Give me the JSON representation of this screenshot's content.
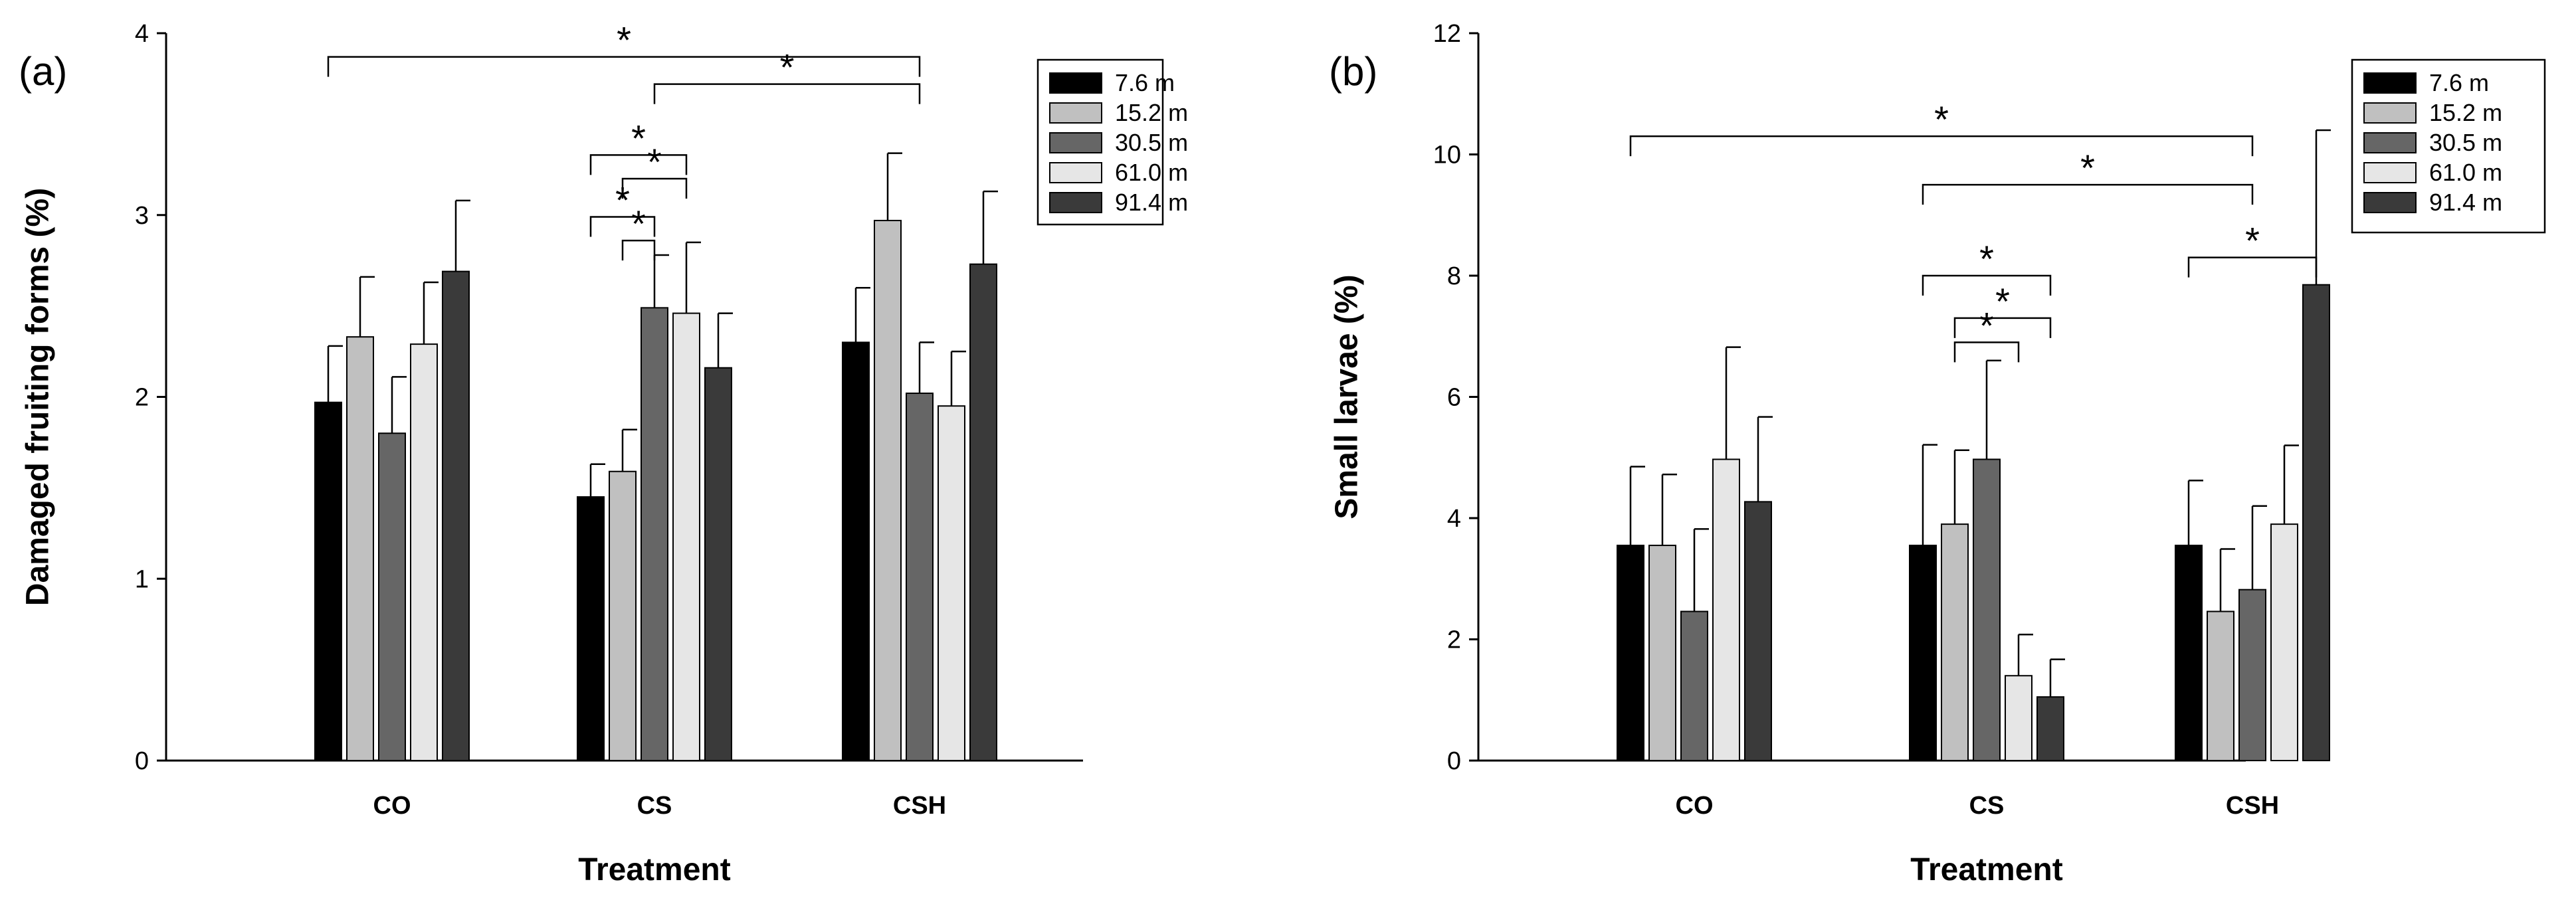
{
  "chart_data": [
    {
      "type": "bar",
      "panel_label": "(a)",
      "xlabel": "Treatment",
      "ylabel": "Damaged fruiting forms (%)",
      "ylim": [
        0,
        4
      ],
      "yticks": [
        "0",
        "1",
        "2",
        "3",
        "4"
      ],
      "categories": [
        "CO",
        "CS",
        "CSH"
      ],
      "legend_position": "top-right",
      "series": [
        {
          "name": "7.6 m",
          "color": "#000000",
          "values": [
            1.97,
            1.45,
            2.3
          ],
          "errors": [
            0.31,
            0.18,
            0.3
          ]
        },
        {
          "name": "15.2 m",
          "color": "#c0c0c0",
          "values": [
            2.33,
            1.59,
            2.97
          ],
          "errors": [
            0.33,
            0.23,
            0.37
          ]
        },
        {
          "name": "30.5 m",
          "color": "#666666",
          "values": [
            1.8,
            2.49,
            2.02
          ],
          "errors": [
            0.31,
            0.29,
            0.28
          ]
        },
        {
          "name": "61.0 m",
          "color": "#e6e6e6",
          "values": [
            2.29,
            2.46,
            1.95
          ],
          "errors": [
            0.34,
            0.39,
            0.3
          ]
        },
        {
          "name": "91.4 m",
          "color": "#3a3a3a",
          "values": [
            2.69,
            2.16,
            2.73
          ],
          "errors": [
            0.39,
            0.3,
            0.4
          ]
        }
      ],
      "significance": [
        {
          "label": "*",
          "from_cat": 0,
          "from_series": 0,
          "to_cat": 2,
          "to_series": 2,
          "y": 3.87
        },
        {
          "label": "*",
          "from_cat": 1,
          "from_series": 2,
          "to_cat": 2,
          "to_series": 2,
          "y": 3.72
        },
        {
          "label": "*",
          "from_cat": 1,
          "from_series": 0,
          "to_cat": 1,
          "to_series": 3,
          "y": 3.33
        },
        {
          "label": "*",
          "from_cat": 1,
          "from_series": 1,
          "to_cat": 1,
          "to_series": 3,
          "y": 3.2
        },
        {
          "label": "*",
          "from_cat": 1,
          "from_series": 0,
          "to_cat": 1,
          "to_series": 2,
          "y": 2.99
        },
        {
          "label": "*",
          "from_cat": 1,
          "from_series": 1,
          "to_cat": 1,
          "to_series": 2,
          "y": 2.86
        }
      ]
    },
    {
      "type": "bar",
      "panel_label": "(b)",
      "xlabel": "Treatment",
      "ylabel": "Small larvae (%)",
      "ylim": [
        0,
        12
      ],
      "yticks": [
        "0",
        "2",
        "4",
        "6",
        "8",
        "10",
        "12"
      ],
      "categories": [
        "CO",
        "CS",
        "CSH"
      ],
      "legend_position": "top-right",
      "series": [
        {
          "name": "7.6 m",
          "color": "#000000",
          "values": [
            3.55,
            3.55,
            3.55
          ],
          "errors": [
            1.3,
            1.66,
            1.07
          ]
        },
        {
          "name": "15.2 m",
          "color": "#c0c0c0",
          "values": [
            3.55,
            3.9,
            2.46
          ],
          "errors": [
            1.17,
            1.22,
            1.03
          ]
        },
        {
          "name": "30.5 m",
          "color": "#666666",
          "values": [
            2.46,
            4.97,
            2.82
          ],
          "errors": [
            1.36,
            1.63,
            1.38
          ]
        },
        {
          "name": "61.0 m",
          "color": "#e6e6e6",
          "values": [
            4.97,
            1.4,
            3.9
          ],
          "errors": [
            1.85,
            0.68,
            1.3
          ]
        },
        {
          "name": "91.4 m",
          "color": "#3a3a3a",
          "values": [
            4.27,
            1.05,
            7.85
          ],
          "errors": [
            1.4,
            0.62,
            2.55
          ]
        }
      ],
      "significance": [
        {
          "label": "*",
          "from_cat": 0,
          "from_series": 0,
          "to_cat": 2,
          "to_series": 2,
          "y": 10.3
        },
        {
          "label": "*",
          "from_cat": 1,
          "from_series": 0,
          "to_cat": 2,
          "to_series": 2,
          "y": 9.5
        },
        {
          "label": "*",
          "from_cat": 2,
          "from_series": 0,
          "to_cat": 2,
          "to_series": 4,
          "y": 8.3
        },
        {
          "label": "*",
          "from_cat": 1,
          "from_series": 0,
          "to_cat": 1,
          "to_series": 4,
          "y": 8.0
        },
        {
          "label": "*",
          "from_cat": 1,
          "from_series": 1,
          "to_cat": 1,
          "to_series": 4,
          "y": 7.3
        },
        {
          "label": "*",
          "from_cat": 1,
          "from_series": 1,
          "to_cat": 1,
          "to_series": 3,
          "y": 6.9
        }
      ]
    }
  ]
}
